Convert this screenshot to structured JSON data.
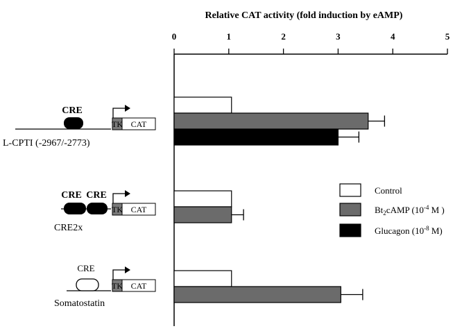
{
  "chart_data": {
    "type": "bar",
    "orientation": "horizontal",
    "title": "Relative CAT activity (fold induction by eAMP)",
    "xlim": [
      0,
      5
    ],
    "xticks": [
      "0",
      "1",
      "2",
      "3",
      "4",
      "5"
    ],
    "axis_position": "top",
    "grid": false,
    "legend_position": "right",
    "categories": [
      "L-CPTI (-2967/-2773)",
      "CRE2x",
      "Somatostatin"
    ],
    "series": [
      {
        "name": "Control",
        "color": "#ffffff",
        "values": [
          1.05,
          1.05,
          1.05
        ],
        "errors": [
          null,
          null,
          null
        ]
      },
      {
        "name": "Bt2cAMP (10-4 M )",
        "color": "#6b6b6b",
        "values": [
          3.55,
          1.05,
          3.05
        ],
        "errors": [
          0.3,
          0.22,
          0.4
        ]
      },
      {
        "name": "Glucagon (10-8 M)",
        "color": "#000000",
        "values": [
          3.0,
          null,
          null
        ],
        "errors": [
          0.38,
          null,
          null
        ]
      }
    ],
    "legend": [
      {
        "key": "control",
        "label": "Control"
      },
      {
        "key": "bt2",
        "label_parts": [
          "Bt",
          "2",
          "cAMP (10",
          "-4",
          " M )"
        ]
      },
      {
        "key": "glucagon",
        "label_parts": [
          "Glucagon (10",
          "-8",
          " M)"
        ]
      }
    ]
  },
  "constructs": [
    {
      "name": "L-CPTI (-2967/-2773)",
      "cre_label": "CRE",
      "cre_style": "filled-single",
      "tk": "TK",
      "cat": "CAT"
    },
    {
      "name": "CRE2x",
      "cre_label": [
        "CRE",
        "CRE"
      ],
      "cre_style": "filled-double",
      "tk": "TK",
      "cat": "CAT"
    },
    {
      "name": "Somatostatin",
      "cre_label": "CRE",
      "cre_style": "open-single",
      "tk": "TK",
      "cat": "CAT"
    }
  ]
}
